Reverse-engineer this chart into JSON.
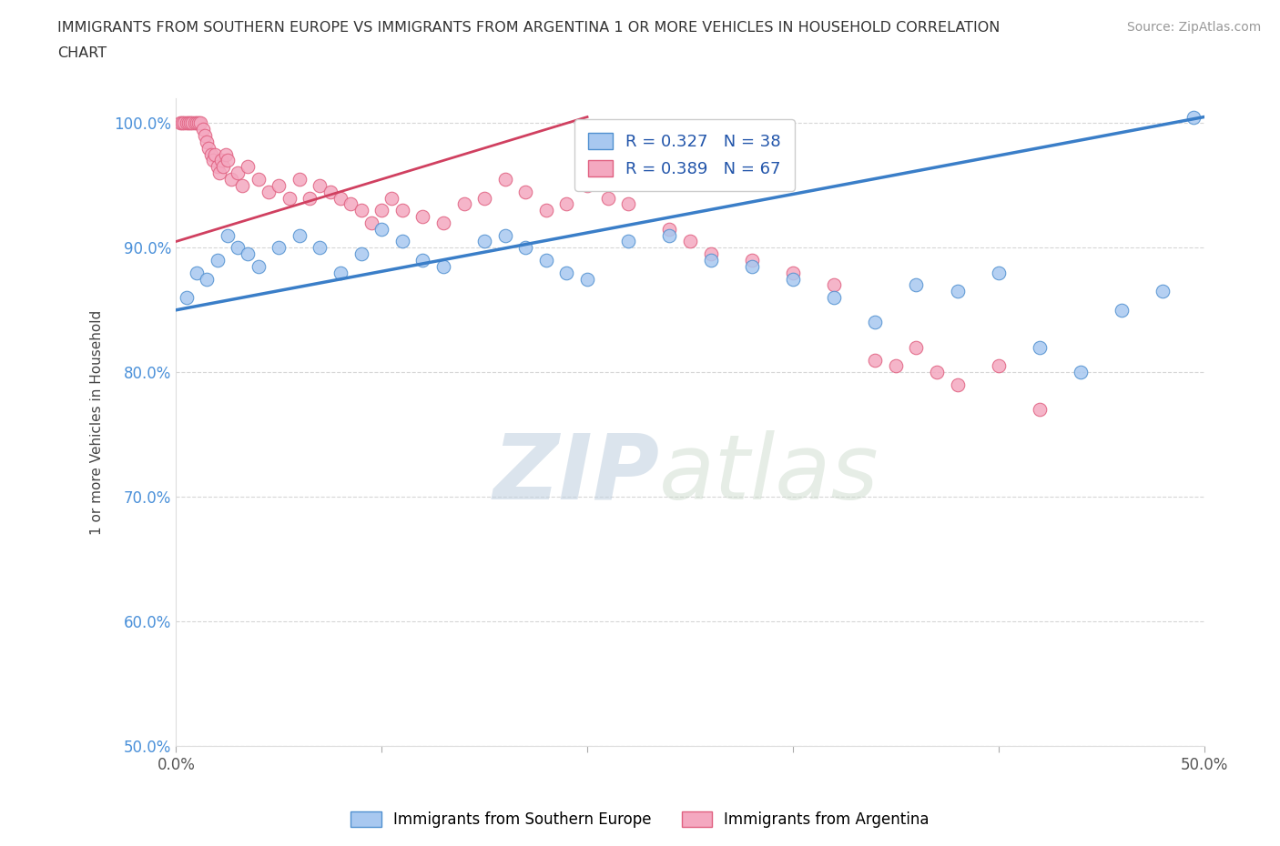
{
  "title_line1": "IMMIGRANTS FROM SOUTHERN EUROPE VS IMMIGRANTS FROM ARGENTINA 1 OR MORE VEHICLES IN HOUSEHOLD CORRELATION",
  "title_line2": "CHART",
  "source": "Source: ZipAtlas.com",
  "ylabel": "1 or more Vehicles in Household",
  "watermark_zip": "ZIP",
  "watermark_atlas": "atlas",
  "xlim": [
    0.0,
    50.0
  ],
  "ylim": [
    50.0,
    102.0
  ],
  "xtick_positions": [
    0,
    10,
    20,
    30,
    40,
    50
  ],
  "xtick_labels": [
    "0.0%",
    "",
    "",
    "",
    "",
    "50.0%"
  ],
  "ytick_positions": [
    50,
    60,
    70,
    80,
    90,
    100
  ],
  "ytick_labels": [
    "50.0%",
    "60.0%",
    "70.0%",
    "80.0%",
    "90.0%",
    "100.0%"
  ],
  "blue_R": 0.327,
  "blue_N": 38,
  "pink_R": 0.389,
  "pink_N": 67,
  "blue_color": "#A8C8F0",
  "pink_color": "#F4A8C0",
  "blue_edge_color": "#5090D0",
  "pink_edge_color": "#E06080",
  "blue_line_color": "#3A7EC8",
  "pink_line_color": "#D04060",
  "blue_line_x": [
    0,
    50
  ],
  "blue_line_y": [
    85.0,
    100.5
  ],
  "pink_line_x": [
    0,
    20
  ],
  "pink_line_y": [
    90.5,
    100.5
  ],
  "blue_x": [
    0.5,
    1.0,
    1.5,
    2.0,
    2.5,
    3.0,
    3.5,
    4.0,
    5.0,
    6.0,
    7.0,
    8.0,
    9.0,
    10.0,
    11.0,
    12.0,
    13.0,
    15.0,
    16.0,
    17.0,
    18.0,
    19.0,
    20.0,
    22.0,
    24.0,
    26.0,
    28.0,
    30.0,
    32.0,
    34.0,
    36.0,
    38.0,
    40.0,
    42.0,
    44.0,
    46.0,
    48.0,
    49.5
  ],
  "blue_y": [
    86.0,
    88.0,
    87.5,
    89.0,
    91.0,
    90.0,
    89.5,
    88.5,
    90.0,
    91.0,
    90.0,
    88.0,
    89.5,
    91.5,
    90.5,
    89.0,
    88.5,
    90.5,
    91.0,
    90.0,
    89.0,
    88.0,
    87.5,
    90.5,
    91.0,
    89.0,
    88.5,
    87.5,
    86.0,
    84.0,
    87.0,
    86.5,
    88.0,
    82.0,
    80.0,
    85.0,
    86.5,
    100.5
  ],
  "pink_x": [
    0.2,
    0.3,
    0.4,
    0.5,
    0.6,
    0.7,
    0.8,
    0.9,
    1.0,
    1.1,
    1.2,
    1.3,
    1.4,
    1.5,
    1.6,
    1.7,
    1.8,
    1.9,
    2.0,
    2.1,
    2.2,
    2.3,
    2.4,
    2.5,
    2.7,
    3.0,
    3.2,
    3.5,
    4.0,
    4.5,
    5.0,
    5.5,
    6.0,
    6.5,
    7.0,
    7.5,
    8.0,
    8.5,
    9.0,
    9.5,
    10.0,
    10.5,
    11.0,
    12.0,
    13.0,
    14.0,
    15.0,
    16.0,
    17.0,
    18.0,
    19.0,
    20.0,
    21.0,
    22.0,
    24.0,
    25.0,
    26.0,
    28.0,
    30.0,
    32.0,
    34.0,
    35.0,
    36.0,
    37.0,
    38.0,
    40.0,
    42.0
  ],
  "pink_y": [
    100.0,
    100.0,
    100.0,
    100.0,
    100.0,
    100.0,
    100.0,
    100.0,
    100.0,
    100.0,
    100.0,
    99.5,
    99.0,
    98.5,
    98.0,
    97.5,
    97.0,
    97.5,
    96.5,
    96.0,
    97.0,
    96.5,
    97.5,
    97.0,
    95.5,
    96.0,
    95.0,
    96.5,
    95.5,
    94.5,
    95.0,
    94.0,
    95.5,
    94.0,
    95.0,
    94.5,
    94.0,
    93.5,
    93.0,
    92.0,
    93.0,
    94.0,
    93.0,
    92.5,
    92.0,
    93.5,
    94.0,
    95.5,
    94.5,
    93.0,
    93.5,
    95.0,
    94.0,
    93.5,
    91.5,
    90.5,
    89.5,
    89.0,
    88.0,
    87.0,
    81.0,
    80.5,
    82.0,
    80.0,
    79.0,
    80.5,
    77.0
  ]
}
